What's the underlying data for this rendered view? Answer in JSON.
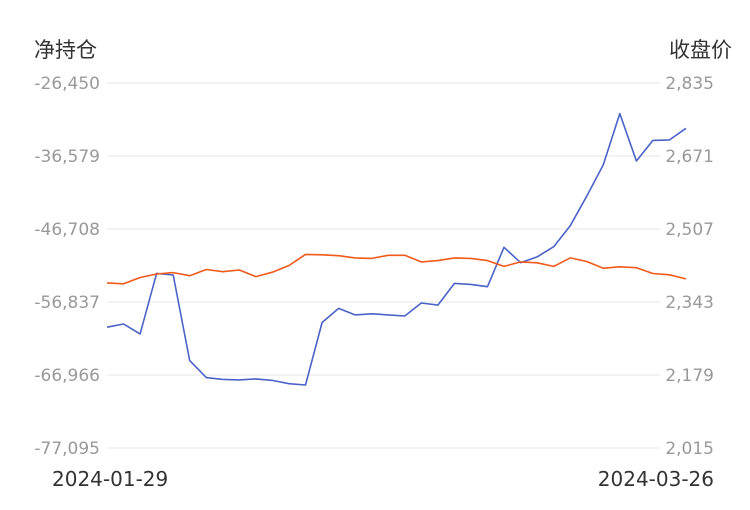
{
  "chart_data": {
    "type": "line",
    "y_left_label": "净持仓",
    "y_right_label": "收盘价",
    "x_start_label": "2024-01-29",
    "x_end_label": "2024-03-26",
    "y_left_ticks": [
      "-26,450",
      "-36,579",
      "-46,708",
      "-56,837",
      "-66,966",
      "-77,095"
    ],
    "y_right_ticks": [
      "2,835",
      "2,671",
      "2,507",
      "2,343",
      "2,179",
      "2,015"
    ],
    "y_left_range": [
      -77095,
      -26450
    ],
    "y_right_range": [
      2015,
      2835
    ],
    "grid": true,
    "colors": {
      "blue": "#4a63c8",
      "orange": "#f05a1a"
    },
    "series": [
      {
        "axis": "left",
        "color": "#4a63c8",
        "values": [
          -60330,
          -59890,
          -61270,
          -52870,
          -53090,
          -64970,
          -67330,
          -67580,
          -67650,
          -67510,
          -67720,
          -68170,
          -68360,
          -59680,
          -57720,
          -58630,
          -58470,
          -58630,
          -58780,
          -56970,
          -57270,
          -54250,
          -54390,
          -54710,
          -49250,
          -51380,
          -50580,
          -49170,
          -46260,
          -42150,
          -37780,
          -30700,
          -37270,
          -34420,
          -34350,
          -32740
        ]
      },
      {
        "axis": "right",
        "color": "#f05a1a",
        "values": [
          2386,
          2384,
          2398,
          2406,
          2409,
          2402,
          2416,
          2411,
          2415,
          2400,
          2410,
          2425,
          2450,
          2449,
          2447,
          2442,
          2441,
          2448,
          2448,
          2433,
          2436,
          2442,
          2441,
          2436,
          2423,
          2433,
          2431,
          2423,
          2442,
          2434,
          2419,
          2422,
          2420,
          2407,
          2404,
          2395
        ]
      }
    ]
  }
}
